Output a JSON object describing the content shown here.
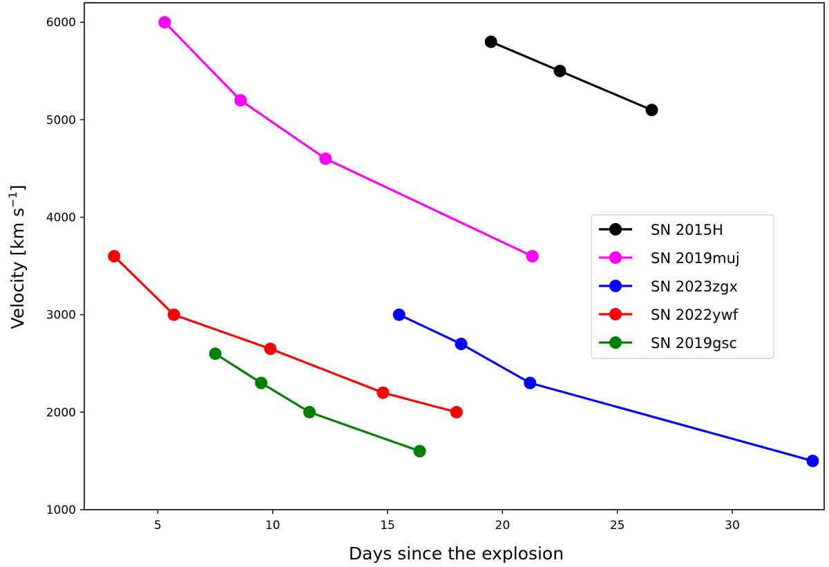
{
  "chart_data": {
    "type": "line",
    "title": "",
    "xlabel": "Days since the explosion",
    "ylabel": "Velocity [km s",
    "ylabel_superscript": "−1",
    "ylabel_close": "]",
    "xlim": [
      1.8,
      34.0
    ],
    "ylim": [
      1000,
      6200
    ],
    "xticks": [
      5,
      10,
      15,
      20,
      25,
      30
    ],
    "yticks": [
      1000,
      2000,
      3000,
      4000,
      5000,
      6000
    ],
    "grid": false,
    "legend_position": "right",
    "series": [
      {
        "name": "SN 2015H",
        "color": "#000000",
        "x": [
          19.5,
          22.5,
          26.5
        ],
        "y": [
          5800,
          5500,
          5100
        ]
      },
      {
        "name": "SN 2019muj",
        "color": "#ff00ff",
        "x": [
          5.3,
          8.6,
          12.3,
          21.3
        ],
        "y": [
          6000,
          5200,
          4600,
          3600
        ]
      },
      {
        "name": "SN 2023zgx",
        "color": "#0000ff",
        "x": [
          15.5,
          18.2,
          21.2,
          33.5
        ],
        "y": [
          3000,
          2700,
          2300,
          1500
        ]
      },
      {
        "name": "SN 2022ywf",
        "color": "#ff0000",
        "x": [
          3.1,
          5.7,
          9.9,
          14.8,
          18.0
        ],
        "y": [
          3600,
          3000,
          2650,
          2200,
          2000
        ]
      },
      {
        "name": "SN 2019gsc",
        "color": "#008000",
        "x": [
          7.5,
          9.5,
          11.6,
          16.4
        ],
        "y": [
          2600,
          2300,
          2000,
          1600
        ]
      }
    ]
  }
}
